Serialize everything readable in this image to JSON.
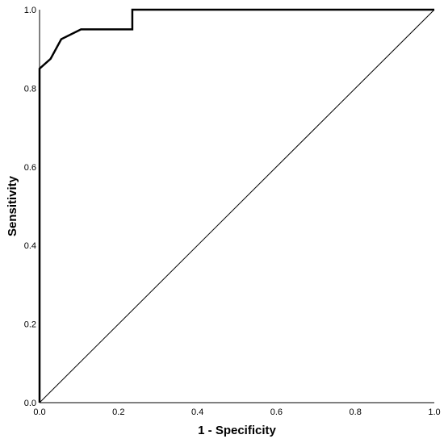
{
  "chart_data": {
    "type": "line",
    "xlabel": "1 - Specificity",
    "ylabel": "Sensitivity",
    "xlim": [
      0,
      1
    ],
    "ylim": [
      0,
      1
    ],
    "grid": false,
    "x_ticks": [
      "0.0",
      "0.2",
      "0.4",
      "0.6",
      "0.8",
      "1.0"
    ],
    "y_ticks": [
      "0.0",
      "0.2",
      "0.4",
      "0.6",
      "0.8",
      "1.0"
    ],
    "series": [
      {
        "x": [
          0.0,
          0.0,
          0.0,
          0.028,
          0.055,
          0.105,
          0.235,
          0.235,
          1.0
        ],
        "y": [
          0.0,
          0.85,
          0.85,
          0.875,
          0.925,
          0.95,
          0.95,
          1.0,
          1.0
        ],
        "color": "#000000"
      },
      {
        "x": [
          0.0,
          1.0
        ],
        "y": [
          0.0,
          1.0
        ],
        "color": "#000000"
      }
    ]
  }
}
